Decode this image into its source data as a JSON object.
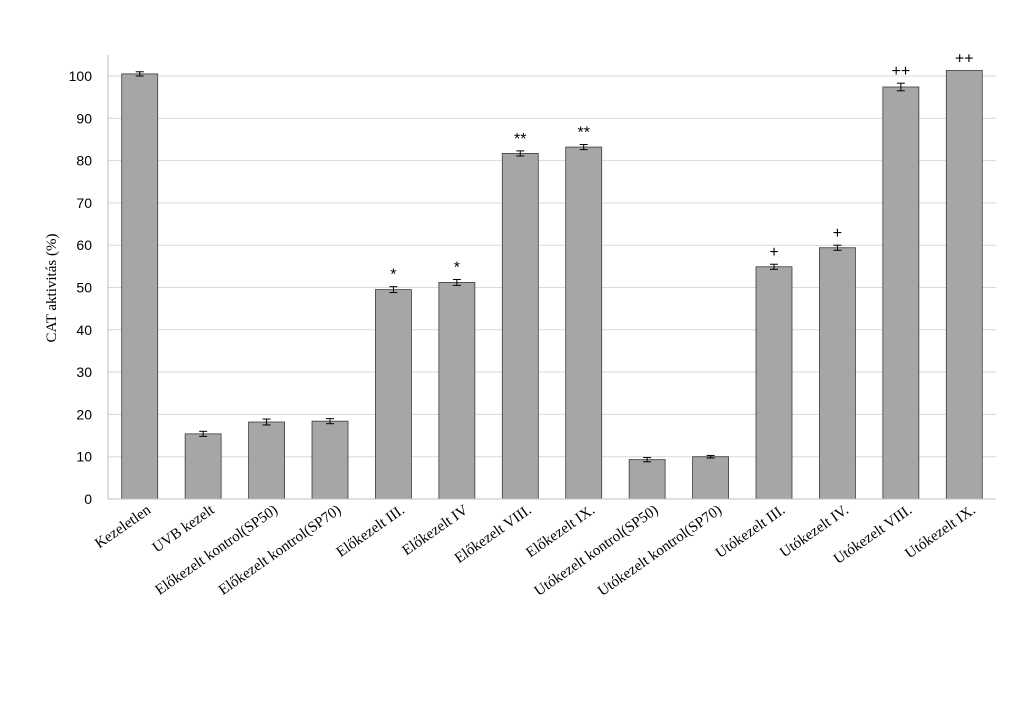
{
  "chart_data": {
    "type": "bar",
    "title": "",
    "xlabel": "",
    "ylabel": "CAT aktivitás (%)",
    "ylim": [
      0,
      100
    ],
    "yticks": [
      0,
      10,
      20,
      30,
      40,
      50,
      60,
      70,
      80,
      90,
      100
    ],
    "grid": true,
    "legend": "none",
    "bar_color": "#a6a6a6",
    "categories": [
      "Kezeletlen",
      "UVB kezelt",
      "Előkezelt kontrol(SP50)",
      "Előkezelt kontrol(SP70)",
      "Előkezelt III.",
      "Előkezelt IV",
      "Előkezelt VIII.",
      "Előkezelt IX.",
      "Utókezelt kontrol(SP50)",
      "Utókezelt kontrol(SP70)",
      "Utókezelt III.",
      "Utókezelt IV.",
      "Utókezelt VIII.",
      "Utókezelt IX."
    ],
    "values": [
      100.5,
      15.4,
      18.2,
      18.4,
      49.5,
      51.2,
      81.7,
      83.2,
      9.3,
      10.0,
      54.9,
      59.4,
      97.4,
      101.3
    ],
    "errors": [
      0.5,
      0.6,
      0.7,
      0.6,
      0.7,
      0.7,
      0.6,
      0.6,
      0.5,
      0.3,
      0.6,
      0.6,
      0.9,
      0.0
    ],
    "annotations": [
      "",
      "",
      "",
      "",
      "*",
      "*",
      "**",
      "**",
      "",
      "",
      "+",
      "+",
      "++",
      "++"
    ]
  }
}
